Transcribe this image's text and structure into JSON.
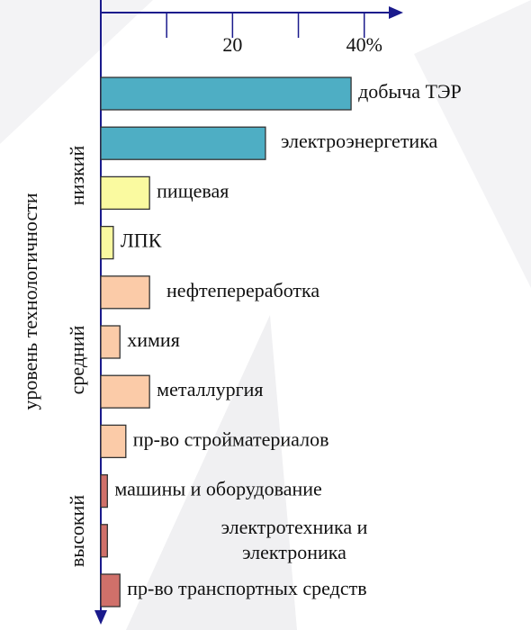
{
  "chart_data": {
    "type": "bar",
    "orientation": "horizontal",
    "y_axis_label": "уровень технологичности",
    "groups": [
      {
        "name": "низкий"
      },
      {
        "name": "средний"
      },
      {
        "name": "высокий"
      }
    ],
    "categories": [
      "добыча ТЭР",
      "электроэнергетика",
      "пищевая",
      "ЛПК",
      "нефтепереработка",
      "химия",
      "металлургия",
      "пр-во стройматериалов",
      "машины и оборудование",
      [
        "электротехника и",
        "электроника"
      ],
      "пр-во транспортных средств"
    ],
    "values": [
      38,
      25,
      7.4,
      1.9,
      7.4,
      2.9,
      7.4,
      3.8,
      1,
      1,
      2.9
    ],
    "colors": [
      "#4eaec4",
      "#4eaec4",
      "#fafaa0",
      "#fafaa0",
      "#fbcba8",
      "#fbcba8",
      "#fbcba8",
      "#fbcba8",
      "#d0706a",
      "#d0706a",
      "#d0706a"
    ],
    "xlim": [
      0,
      44
    ],
    "xticks": [
      20,
      {
        "value": 40,
        "label": "40%"
      }
    ],
    "minor_xticks": [
      10,
      30
    ]
  }
}
